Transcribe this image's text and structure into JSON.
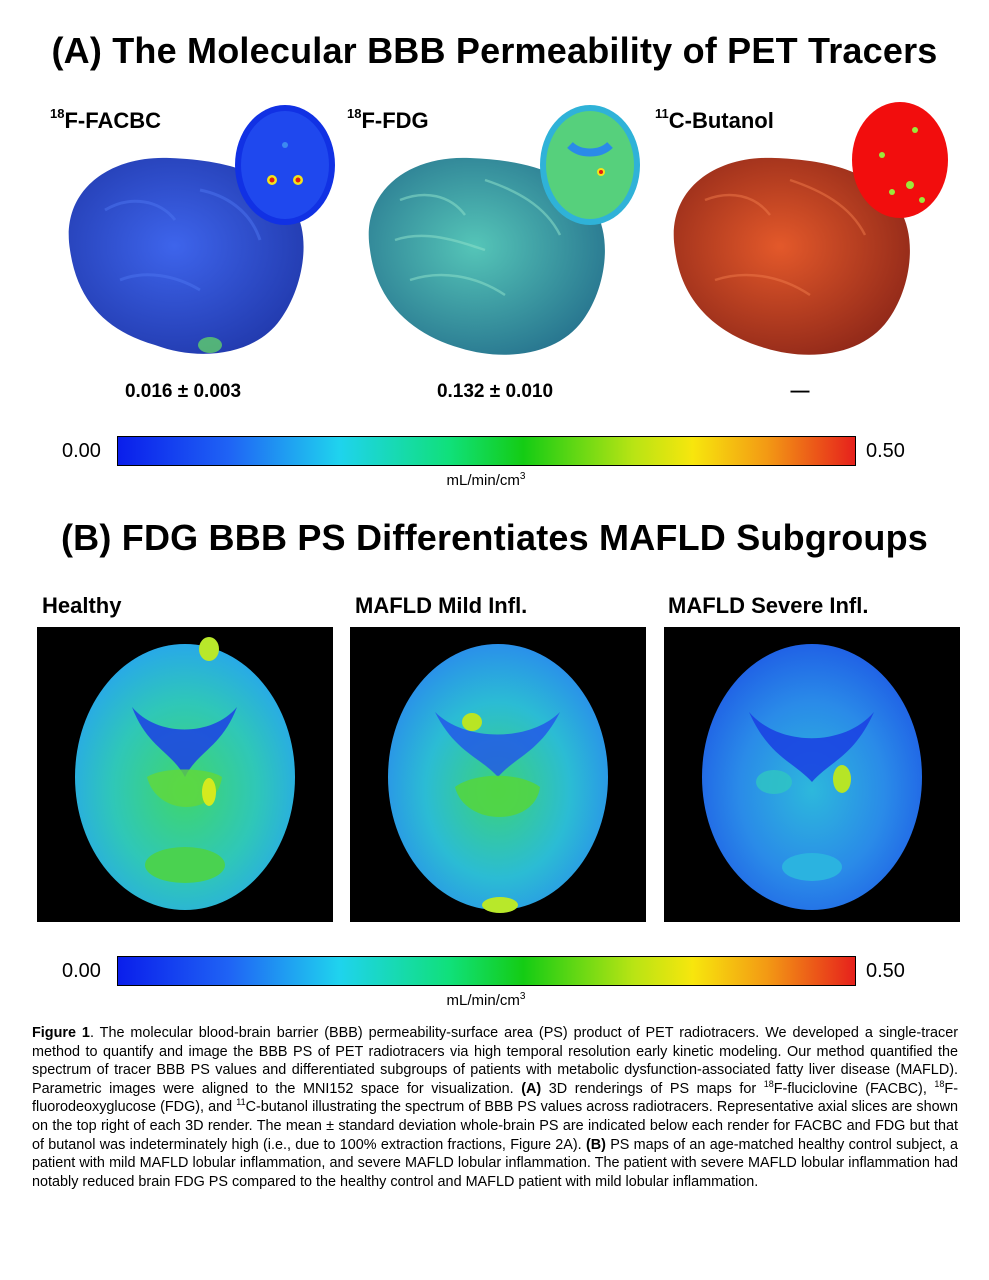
{
  "panelA": {
    "title": "(A) The Molecular BBB Permeability of PET Tracers",
    "tracers": [
      {
        "sup": "18",
        "name": "F-FACBC",
        "value": "0.016 ± 0.003",
        "color": "#1a3fd6"
      },
      {
        "sup": "18",
        "name": "F-FDG",
        "value": "0.132 ± 0.010",
        "color": "#2fa3a8"
      },
      {
        "sup": "11",
        "name": "C-Butanol",
        "value": "—",
        "color": "#c43416"
      }
    ],
    "colorbar": {
      "min": "0.00",
      "max": "0.50",
      "unit_base": "mL/min/cm",
      "unit_sup": "3"
    }
  },
  "panelB": {
    "title": "(B) FDG BBB PS Differentiates MAFLD Subgroups",
    "groups": [
      {
        "name": "Healthy"
      },
      {
        "name": "MAFLD Mild Infl."
      },
      {
        "name": "MAFLD Severe Infl."
      }
    ],
    "colorbar": {
      "min": "0.00",
      "max": "0.50",
      "unit_base": "mL/min/cm",
      "unit_sup": "3"
    }
  },
  "caption": {
    "label": "Figure 1",
    "p1": ". The molecular blood-brain barrier (BBB) permeability-surface area (PS) product of PET radiotracers. We developed a single-tracer method to quantify and image the BBB PS of PET radiotracers via high temporal resolution early kinetic modeling. Our method quantified the spectrum of tracer BBB PS values and differentiated subgroups of patients with metabolic dysfunction-associated fatty liver disease (MAFLD). Parametric images were aligned to the MNI152 space for visualization. ",
    "a_label": "(A)",
    "p2a": " 3D renderings of PS maps for ",
    "s1": "18",
    "p2b": "F-fluciclovine (FACBC), ",
    "s2": "18",
    "p2c": "F-fluorodeoxyglucose (FDG), and ",
    "s3": "11",
    "p2d": "C-butanol illustrating the spectrum of BBB PS values across radiotracers. Representative axial slices are shown on the top right of each 3D render. The mean ± standard deviation whole-brain PS are indicated below each render for FACBC and FDG but that of butanol was indeterminately high (i.e., due to 100% extraction fractions, Figure 2A). ",
    "b_label": "(B)",
    "p3": " PS maps of an age-matched healthy control subject, a patient with mild MAFLD lobular inflammation, and severe MAFLD lobular inflammation. The patient with severe MAFLD lobular inflammation had notably reduced brain FDG PS compared to the healthy control and MAFLD patient with mild lobular inflammation."
  }
}
